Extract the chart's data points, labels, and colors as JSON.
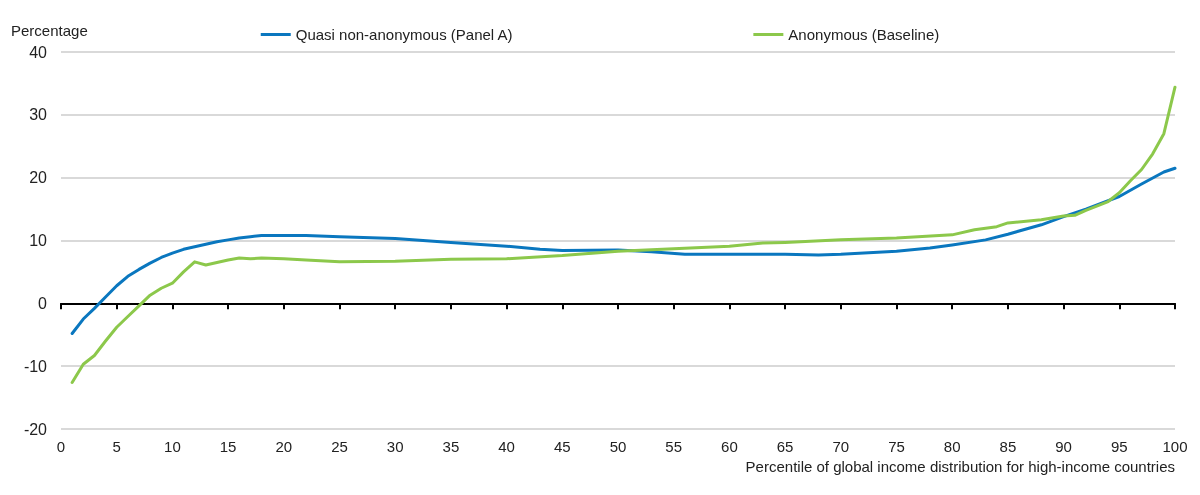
{
  "chart_data": {
    "type": "line",
    "ylabel": "Percentage",
    "xlabel": "Percentile of global income distribution for high-income countries",
    "xlim": [
      0,
      100
    ],
    "xticks": [
      0,
      5,
      10,
      15,
      20,
      25,
      30,
      35,
      40,
      45,
      50,
      55,
      60,
      65,
      70,
      75,
      80,
      85,
      90,
      95,
      100
    ],
    "ylim": [
      -20,
      40
    ],
    "yticks": [
      -20,
      -10,
      0,
      10,
      20,
      30,
      40
    ],
    "grid": "y",
    "legend": "top",
    "marker": "none",
    "line_style": "solid",
    "series": [
      {
        "name": "Quasi non-anonymous (Panel A)",
        "color": "#0a77bf",
        "x": [
          1,
          2,
          3,
          4,
          5,
          6,
          7,
          8,
          9,
          10,
          11,
          12,
          13,
          14,
          15,
          16,
          17,
          18,
          19,
          20,
          22,
          25,
          30,
          35,
          40,
          43,
          45,
          50,
          53,
          56,
          60,
          65,
          68,
          70,
          75,
          78,
          80,
          83,
          85,
          88,
          90,
          92,
          95,
          97,
          99,
          100
        ],
        "values": [
          -4.8,
          -2.5,
          -0.8,
          1,
          2.8,
          4.3,
          5.4,
          6.4,
          7.3,
          8,
          8.6,
          9,
          9.4,
          9.8,
          10.1,
          10.4,
          10.6,
          10.8,
          10.8,
          10.8,
          10.8,
          10.6,
          10.3,
          9.7,
          9.1,
          8.6,
          8.4,
          8.5,
          8.2,
          7.8,
          7.8,
          7.8,
          7.7,
          7.8,
          8.3,
          8.8,
          9.3,
          10.1,
          11,
          12.5,
          13.8,
          15,
          17,
          19,
          20.9,
          21.5
        ]
      },
      {
        "name": "Anonymous (Baseline)",
        "color": "#8cc84b",
        "x": [
          1,
          2,
          3,
          4,
          5,
          6,
          7,
          8,
          9,
          10,
          11,
          12,
          13,
          14,
          15,
          16,
          17,
          18,
          20,
          22,
          25,
          30,
          35,
          40,
          45,
          50,
          55,
          60,
          63,
          65,
          70,
          75,
          80,
          82,
          84,
          85,
          88,
          90,
          91,
          92,
          94,
          95,
          96,
          97,
          98,
          99,
          100
        ],
        "values": [
          -12.6,
          -9.7,
          -8.3,
          -6,
          -3.8,
          -2.1,
          -0.4,
          1.3,
          2.4,
          3.2,
          5,
          6.6,
          6.1,
          6.5,
          6.9,
          7.2,
          7.1,
          7.2,
          7.1,
          6.9,
          6.6,
          6.7,
          7,
          7.1,
          7.6,
          8.3,
          8.7,
          9.1,
          9.6,
          9.7,
          10.1,
          10.4,
          10.9,
          11.7,
          12.2,
          12.8,
          13.3,
          13.9,
          14,
          14.8,
          16.2,
          17.6,
          19.5,
          21.3,
          23.8,
          27,
          34.4
        ]
      }
    ]
  }
}
